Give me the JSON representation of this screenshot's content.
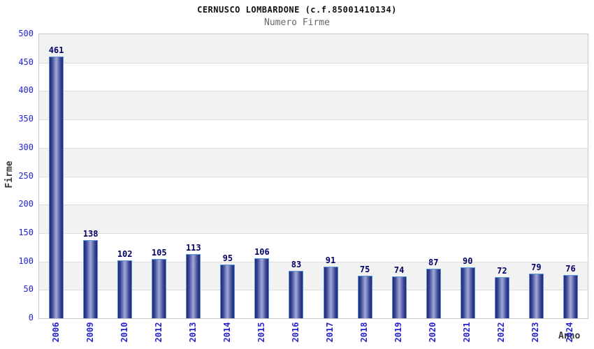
{
  "chart_data": {
    "type": "bar",
    "title": "CERNUSCO LOMBARDONE (c.f.85001410134)",
    "subtitle": "Numero Firme",
    "xlabel": "Anno",
    "ylabel": "Firme",
    "categories": [
      "2006",
      "2009",
      "2010",
      "2012",
      "2013",
      "2014",
      "2015",
      "2016",
      "2017",
      "2018",
      "2019",
      "2020",
      "2021",
      "2022",
      "2023",
      "2024"
    ],
    "values": [
      461,
      138,
      102,
      105,
      113,
      95,
      106,
      83,
      91,
      75,
      74,
      87,
      90,
      72,
      79,
      76
    ],
    "ylim": [
      0,
      500
    ],
    "ytick_step": 50,
    "yticks": [
      0,
      50,
      100,
      150,
      200,
      250,
      300,
      350,
      400,
      450,
      500
    ],
    "grid": true,
    "legend": "none",
    "band_shading": "alternating gray/white every 50 units, gray at top"
  },
  "colors": {
    "title": "#111111",
    "subtitle": "#666666",
    "tick_label": "#2424cc",
    "value_label": "#000066",
    "axis_title": "#383838",
    "band_gray": "#f2f2f2",
    "band_white": "#ffffff",
    "grid_line": "#dcdcdc",
    "plot_border": "#c9c9c9",
    "bar_border": "#5895dd",
    "bar_edge_dark": "#1f2874",
    "bar_mid": "#3c4694",
    "bar_center_light": "#9aa2d4"
  }
}
